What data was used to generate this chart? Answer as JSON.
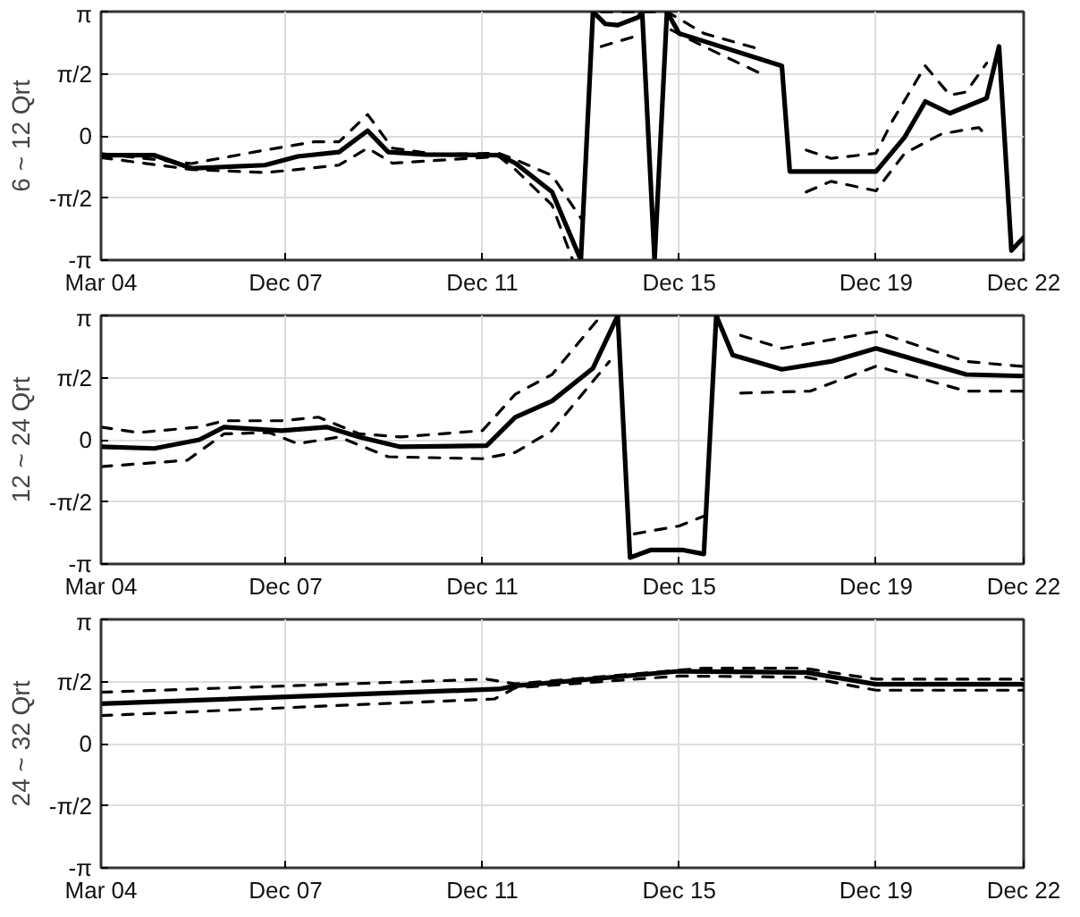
{
  "chart_data": [
    {
      "type": "line",
      "ylabel": "6 ~ 12 Qrt",
      "xlim": [
        "2004-03",
        "2022-12"
      ],
      "ylim": [
        -3.1416,
        3.1416
      ],
      "grid": true,
      "line_style": "dashed",
      "xticks": [
        {
          "value": "2004-03",
          "label": "Mar 04"
        },
        {
          "value": "2007-12",
          "label": "Dec 07"
        },
        {
          "value": "2011-12",
          "label": "Dec 11"
        },
        {
          "value": "2015-12",
          "label": "Dec 15"
        },
        {
          "value": "2019-12",
          "label": "Dec 19"
        },
        {
          "value": "2022-12",
          "label": "Dec 22"
        }
      ],
      "yticks": [
        {
          "value": -3.1416,
          "label": "-π"
        },
        {
          "value": -1.5708,
          "label": "-π/2"
        },
        0,
        {
          "value": 1.5708,
          "label": "π/2"
        },
        {
          "value": 3.1416,
          "label": "π"
        }
      ],
      "series": [
        {
          "color": "#000000",
          "line_style": "solid",
          "x": [
            "2004-03",
            "2005-04",
            "2006-01",
            "2007-07",
            "2008-03",
            "2009-01",
            "2009-08",
            "2010-01",
            "2010-10",
            "2012-04",
            "2012-08",
            "2013-05",
            "2013-12",
            "2014-03",
            "2014-06",
            "2014-09",
            "2015-02",
            "2015-03",
            "2015-06",
            "2015-09",
            "2015-12",
            "2018-01",
            "2018-03",
            "2019-12",
            "2020-07",
            "2020-12",
            "2021-06",
            "2022-03",
            "2022-06",
            "2022-09",
            "2022-12"
          ],
          "values": [
            -0.49,
            -0.49,
            -0.82,
            -0.74,
            -0.52,
            -0.41,
            0.13,
            -0.41,
            -0.47,
            -0.49,
            -0.69,
            -1.42,
            -3.14,
            3.14,
            2.83,
            2.8,
            3.0,
            3.14,
            -3.14,
            3.14,
            2.59,
            1.77,
            -0.9,
            -0.9,
            -0.03,
            0.87,
            0.57,
            0.95,
            2.26,
            -2.9,
            -2.57
          ]
        },
        {
          "color": "#000000",
          "x": [
            "2004-03",
            "2006-01",
            "2007-07",
            "2008-07",
            "2009-01",
            "2009-08",
            "2010-02",
            "2011-01",
            "2012-04",
            "2012-08",
            "2013-05",
            "2013-12",
            "2014-01",
            "2014-05",
            "2015-03",
            "2015-09",
            "2016-06",
            "2017-08",
            "2018-01",
            "2018-07",
            "2019-01",
            "2019-12",
            "2020-04",
            "2020-12",
            "2021-06",
            "2021-10",
            "2022-03"
          ],
          "values": [
            -0.45,
            -0.7,
            -0.36,
            -0.15,
            -0.15,
            0.54,
            -0.31,
            -0.47,
            -0.44,
            -0.6,
            -1.0,
            -2.08,
            null,
            3.14,
            3.14,
            3.14,
            2.59,
            2.18,
            null,
            -0.36,
            -0.57,
            -0.44,
            0.38,
            1.77,
            1.03,
            1.11,
            1.84
          ]
        },
        {
          "color": "#000000",
          "x": [
            "2004-03",
            "2006-01",
            "2007-07",
            "2008-03",
            "2009-01",
            "2009-08",
            "2010-02",
            "2012-04",
            "2012-08",
            "2013-05",
            "2013-10",
            "2014-01",
            "2014-05",
            "2015-02",
            "2015-04",
            "2015-10",
            "2016-06",
            "2017-09",
            "2018-01",
            "2018-07",
            "2019-01",
            "2019-12",
            "2020-07",
            "2021-04",
            "2022-01",
            "2022-03"
          ],
          "values": [
            -0.55,
            -0.85,
            -0.93,
            -0.85,
            -0.74,
            -0.31,
            -0.69,
            -0.52,
            -0.85,
            -1.75,
            -3.14,
            null,
            2.26,
            2.54,
            null,
            2.68,
            2.26,
            1.52,
            null,
            -1.42,
            -1.15,
            -1.39,
            -0.44,
            0.05,
            0.21,
            0
          ]
        }
      ]
    },
    {
      "type": "line",
      "ylabel": "12 ~ 24 Qrt",
      "xlim": [
        "2004-03",
        "2022-12"
      ],
      "ylim": [
        -3.1416,
        3.1416
      ],
      "grid": true,
      "line_style": "dashed",
      "xticks": [
        {
          "value": "2004-03",
          "label": "Mar 04"
        },
        {
          "value": "2007-12",
          "label": "Dec 07"
        },
        {
          "value": "2011-12",
          "label": "Dec 11"
        },
        {
          "value": "2015-12",
          "label": "Dec 15"
        },
        {
          "value": "2019-12",
          "label": "Dec 19"
        },
        {
          "value": "2022-12",
          "label": "Dec 22"
        }
      ],
      "yticks": [
        {
          "value": -3.1416,
          "label": "-π"
        },
        {
          "value": -1.5708,
          "label": "-π/2"
        },
        0,
        {
          "value": 1.5708,
          "label": "π/2"
        },
        {
          "value": 3.1416,
          "label": "π"
        }
      ],
      "series": [
        {
          "color": "#000000",
          "line_style": "solid",
          "x": [
            "2004-03",
            "2005-04",
            "2006-03",
            "2006-09",
            "2007-11",
            "2008-10",
            "2009-06",
            "2010-04",
            "2012-01",
            "2012-08",
            "2013-05",
            "2014-03",
            "2014-09",
            "2014-12",
            "2015-05",
            "2016-01",
            "2016-06",
            "2016-09",
            "2017-01",
            "2018-01",
            "2019-01",
            "2019-12",
            "2021-10",
            "2022-12"
          ],
          "values": [
            -0.18,
            -0.22,
            0,
            0.32,
            0.23,
            0.32,
            0.07,
            -0.18,
            -0.15,
            0.57,
            0.98,
            1.81,
            3.14,
            -2.98,
            -2.79,
            -2.79,
            -2.89,
            3.14,
            2.14,
            1.78,
            1.98,
            2.31,
            1.65,
            1.61
          ]
        },
        {
          "color": "#000000",
          "x": [
            "2004-03",
            "2004-12",
            "2006-03",
            "2006-09",
            "2007-11",
            "2008-08",
            "2009-06",
            "2010-04",
            "2011-12",
            "2012-08",
            "2013-05",
            "2014-05",
            "2014-08",
            "2015-01",
            "2015-12",
            "2016-06",
            "2016-09",
            "2017-03",
            "2018-01",
            "2019-12",
            "2021-10",
            "2022-12"
          ],
          "values": [
            0.32,
            0.18,
            0.32,
            0.48,
            0.48,
            0.57,
            0.15,
            0.07,
            0.23,
            1.15,
            1.65,
            3.14,
            null,
            -2.38,
            -2.18,
            -1.93,
            null,
            2.64,
            2.31,
            2.73,
            1.98,
            1.85
          ]
        },
        {
          "color": "#000000",
          "x": [
            "2004-03",
            "2005-12",
            "2006-09",
            "2007-08",
            "2008-03",
            "2009-01",
            "2010-01",
            "2011-12",
            "2012-08",
            "2013-05",
            "2014-07",
            "2016-01",
            "2017-03",
            "2018-08",
            "2019-12",
            "2021-10",
            "2022-12"
          ],
          "values": [
            -0.68,
            -0.52,
            0.15,
            0.18,
            -0.1,
            0.07,
            -0.43,
            -0.48,
            -0.32,
            0.23,
            1.98,
            null,
            1.18,
            1.23,
            1.86,
            1.23,
            1.23
          ]
        }
      ]
    },
    {
      "type": "line",
      "ylabel": "24 ~ 32 Qrt",
      "xlim": [
        "2004-03",
        "2022-12"
      ],
      "ylim": [
        -3.1416,
        3.1416
      ],
      "grid": true,
      "line_style": "dashed",
      "xticks": [
        {
          "value": "2004-03",
          "label": "Mar 04"
        },
        {
          "value": "2007-12",
          "label": "Dec 07"
        },
        {
          "value": "2011-12",
          "label": "Dec 11"
        },
        {
          "value": "2015-12",
          "label": "Dec 15"
        },
        {
          "value": "2019-12",
          "label": "Dec 19"
        },
        {
          "value": "2022-12",
          "label": "Dec 22"
        }
      ],
      "yticks": [
        {
          "value": -3.1416,
          "label": "-π"
        },
        {
          "value": -1.5708,
          "label": "-π/2"
        },
        0,
        {
          "value": 1.5708,
          "label": "π/2"
        },
        {
          "value": 3.1416,
          "label": "π"
        }
      ],
      "series": [
        {
          "color": "#000000",
          "line_style": "solid",
          "x": [
            "2004-03",
            "2012-04",
            "2012-08",
            "2015-12",
            "2018-07",
            "2019-12",
            "2022-12"
          ],
          "values": [
            1.01,
            1.38,
            1.46,
            1.83,
            1.8,
            1.5,
            1.5
          ]
        },
        {
          "color": "#000000",
          "x": [
            "2004-03",
            "2012-01",
            "2012-08",
            "2016-06",
            "2018-06",
            "2019-12",
            "2022-12"
          ],
          "values": [
            1.3,
            1.63,
            1.51,
            1.91,
            1.91,
            1.63,
            1.63
          ]
        },
        {
          "color": "#000000",
          "x": [
            "2004-03",
            "2012-03",
            "2012-08",
            "2015-12",
            "2018-07",
            "2019-12",
            "2022-12"
          ],
          "values": [
            0.71,
            1.13,
            1.41,
            1.71,
            1.68,
            1.35,
            1.35
          ]
        }
      ]
    }
  ]
}
